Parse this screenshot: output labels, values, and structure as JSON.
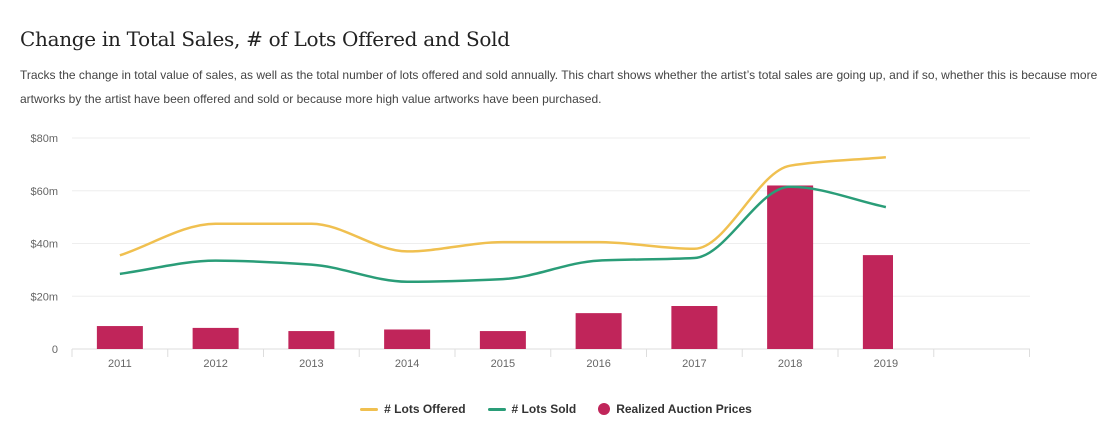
{
  "chart_data": {
    "type": "bar",
    "title": "Change in Total Sales, # of Lots Offered and Sold",
    "subtitle": "Tracks the change in total value of sales, as well as the total number of lots offered and sold annually. This chart shows whether the artist’s total sales are going up, and if so, whether this is because more artworks by the artist have been offered and sold or because more high value artworks have been purchased.",
    "categories": [
      "2011",
      "2012",
      "2013",
      "2014",
      "2015",
      "2016",
      "2017",
      "2018",
      "2019"
    ],
    "yticks": [
      "0",
      "$20m",
      "$40m",
      "$60m",
      "$80m"
    ],
    "ylim": [
      0,
      80
    ],
    "grid": true,
    "legend_position": "bottom",
    "series": [
      {
        "name": "# Lots Offered",
        "type": "line",
        "color": "#f0c050",
        "values": [
          35.5,
          47.5,
          47.5,
          37,
          40.5,
          40.5,
          38,
          69.5,
          72.7
        ]
      },
      {
        "name": "# Lots Sold",
        "type": "line",
        "color": "#2a9d78",
        "values": [
          28.5,
          33.5,
          32,
          25.5,
          26.5,
          33.5,
          34.5,
          61.5,
          53.8
        ]
      },
      {
        "name": "Realized Auction Prices",
        "type": "bar",
        "color": "#c0255a",
        "values": [
          8.7,
          8,
          6.8,
          7.4,
          6.8,
          13.6,
          16.3,
          62,
          35.6
        ]
      }
    ]
  }
}
